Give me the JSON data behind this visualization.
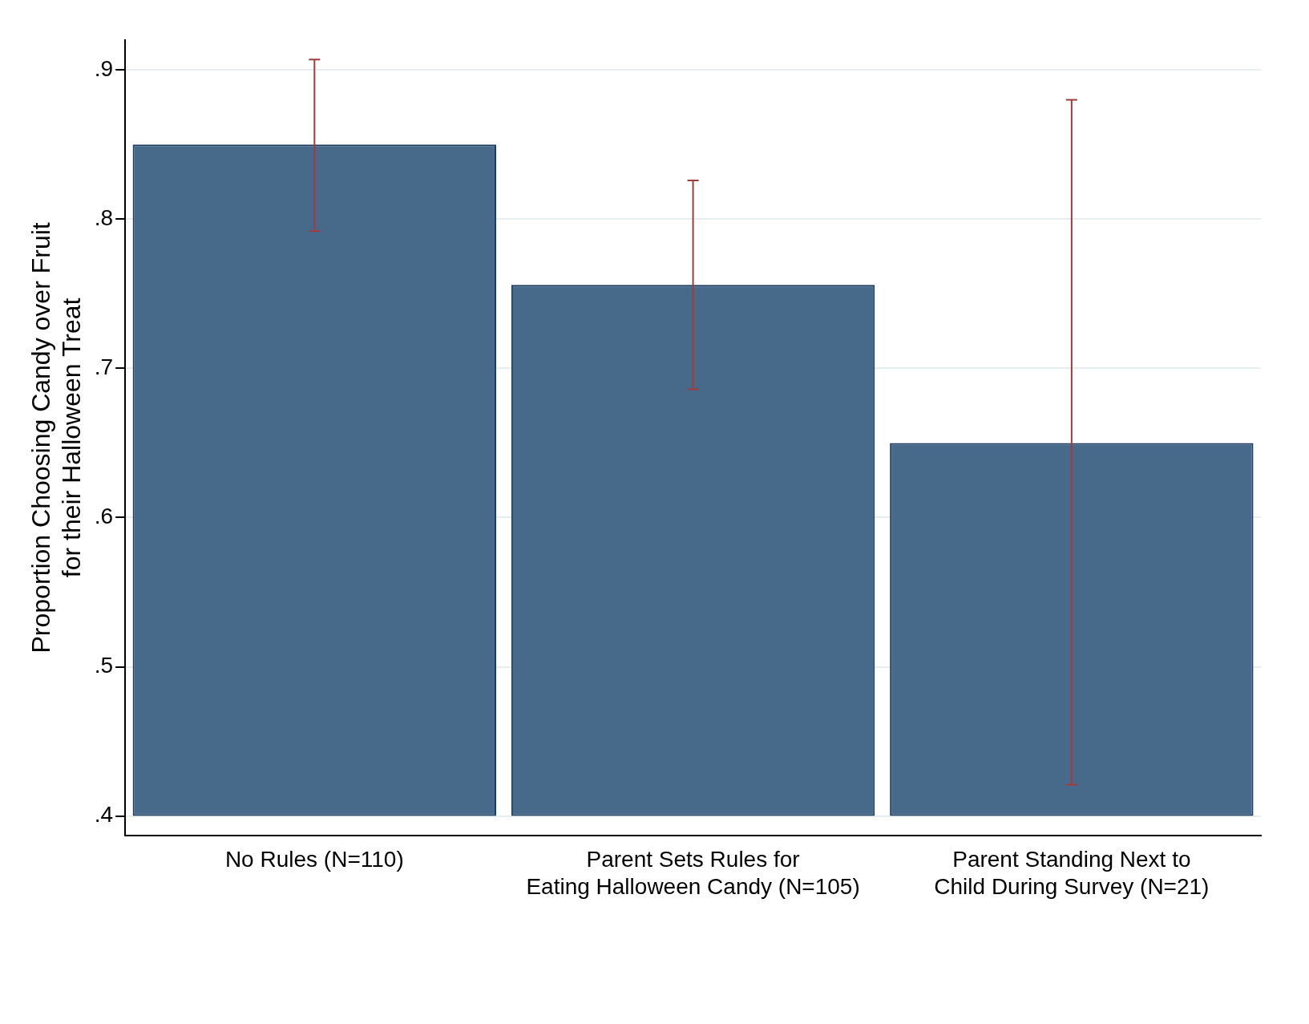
{
  "chart_data": {
    "type": "bar",
    "ylabel": "Proportion Choosing Candy over Fruit\nfor their Halloween Treat",
    "categories": [
      "No Rules (N=110)",
      "Parent Sets Rules for\nEating Halloween Candy (N=105)",
      "Parent Standing Next to\nChild During Survey (N=21)"
    ],
    "base": [
      0.4,
      0.4,
      0.4
    ],
    "values": [
      0.45,
      0.356,
      0.25
    ],
    "errors": [
      [
        0.792,
        0.907
      ],
      [
        0.686,
        0.826
      ],
      [
        0.421,
        0.88
      ]
    ],
    "color": "#476a8b",
    "ylim": [
      0.387,
      0.92
    ],
    "yticks": [
      {
        "value": 0.4,
        "label": ".4"
      },
      {
        "value": 0.5,
        "label": ".5"
      },
      {
        "value": 0.6,
        "label": ".6"
      },
      {
        "value": 0.7,
        "label": ".7"
      },
      {
        "value": 0.8,
        "label": ".8"
      },
      {
        "value": 0.9,
        "label": ".9"
      }
    ],
    "grid": "y"
  }
}
